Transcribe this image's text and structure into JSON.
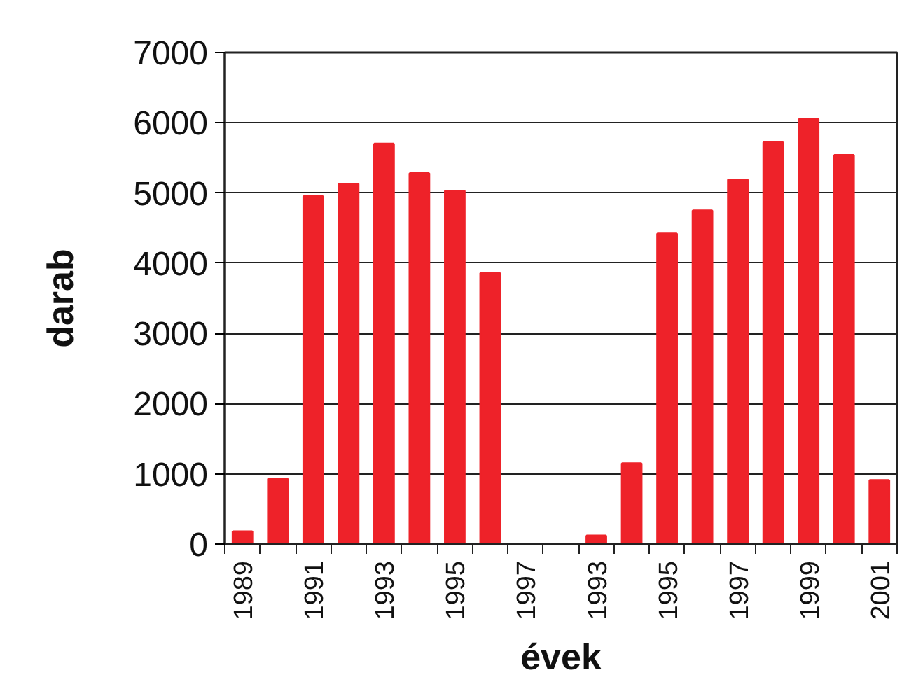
{
  "chart_data": {
    "type": "bar",
    "xlabel": "évek",
    "ylabel": "darab",
    "categories": [
      "1989",
      null,
      "1991",
      null,
      "1993",
      null,
      "1995",
      null,
      "1997",
      null,
      "1993",
      null,
      "1995",
      null,
      "1997",
      null,
      "1999",
      null,
      "2001"
    ],
    "values": [
      180,
      930,
      4950,
      5130,
      5700,
      5280,
      5030,
      3860,
      0,
      null,
      120,
      1150,
      4420,
      4750,
      5190,
      5720,
      6050,
      5540,
      910
    ],
    "color": "#ee2229",
    "ylim": [
      0,
      7000
    ],
    "yticks": [
      0,
      1000,
      2000,
      3000,
      4000,
      5000,
      6000,
      7000
    ],
    "grid": "y"
  }
}
